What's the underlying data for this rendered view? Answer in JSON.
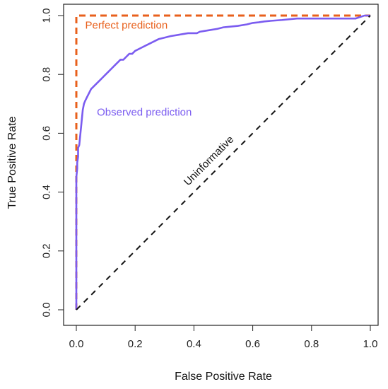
{
  "chart_data": {
    "type": "line",
    "title": "",
    "xlabel": "False Positive Rate",
    "ylabel": "True Positive Rate",
    "xlim": [
      0,
      1
    ],
    "ylim": [
      0,
      1
    ],
    "xticks": [
      0.0,
      0.2,
      0.4,
      0.6,
      0.8,
      1.0
    ],
    "yticks": [
      0.0,
      0.2,
      0.4,
      0.6,
      0.8,
      1.0
    ],
    "tick_labels_x": [
      "0.0",
      "0.2",
      "0.4",
      "0.6",
      "0.8",
      "1.0"
    ],
    "tick_labels_y": [
      "0.0",
      "0.2",
      "0.4",
      "0.6",
      "0.8",
      "1.0"
    ],
    "grid": false,
    "series": [
      {
        "name": "Perfect prediction",
        "color": "#e8601c",
        "style": "dashed",
        "x": [
          0,
          0,
          1
        ],
        "y": [
          0,
          1,
          1
        ]
      },
      {
        "name": "Observed prediction",
        "color": "#7b5cf0",
        "style": "solid",
        "x": [
          0,
          0,
          0.003,
          0.003,
          0.006,
          0.006,
          0.01,
          0.012,
          0.014,
          0.016,
          0.018,
          0.02,
          0.022,
          0.024,
          0.026,
          0.03,
          0.035,
          0.04,
          0.045,
          0.05,
          0.06,
          0.07,
          0.08,
          0.09,
          0.1,
          0.11,
          0.12,
          0.13,
          0.14,
          0.15,
          0.16,
          0.17,
          0.18,
          0.19,
          0.2,
          0.22,
          0.24,
          0.26,
          0.28,
          0.3,
          0.32,
          0.35,
          0.38,
          0.41,
          0.42,
          0.45,
          0.48,
          0.5,
          0.52,
          0.55,
          0.58,
          0.6,
          0.62,
          0.64,
          0.66,
          0.7,
          0.75,
          0.8,
          0.85,
          0.9,
          0.95,
          0.98,
          1.0
        ],
        "y": [
          0,
          0.45,
          0.48,
          0.5,
          0.52,
          0.55,
          0.56,
          0.58,
          0.6,
          0.62,
          0.64,
          0.66,
          0.68,
          0.69,
          0.7,
          0.71,
          0.72,
          0.73,
          0.74,
          0.75,
          0.76,
          0.77,
          0.78,
          0.79,
          0.8,
          0.81,
          0.82,
          0.83,
          0.84,
          0.85,
          0.85,
          0.86,
          0.87,
          0.87,
          0.88,
          0.89,
          0.9,
          0.91,
          0.92,
          0.925,
          0.93,
          0.935,
          0.94,
          0.94,
          0.945,
          0.95,
          0.955,
          0.96,
          0.962,
          0.965,
          0.97,
          0.975,
          0.977,
          0.98,
          0.982,
          0.985,
          0.99,
          0.99,
          0.99,
          0.99,
          0.99,
          1.0,
          1.0
        ]
      },
      {
        "name": "Uninformative",
        "color": "#111111",
        "style": "dashed",
        "x": [
          0,
          1
        ],
        "y": [
          0,
          1
        ]
      }
    ],
    "annotations": [
      {
        "text": "Perfect prediction",
        "color": "#e8601c",
        "x": 0.03,
        "y": 0.955,
        "rotate": 0
      },
      {
        "text": "Observed prediction",
        "color": "#7b5cf0",
        "x": 0.07,
        "y": 0.66,
        "rotate": 0
      },
      {
        "text": "Uninformative",
        "color": "#111111",
        "x": 0.38,
        "y": 0.42,
        "rotate": -45
      }
    ]
  }
}
